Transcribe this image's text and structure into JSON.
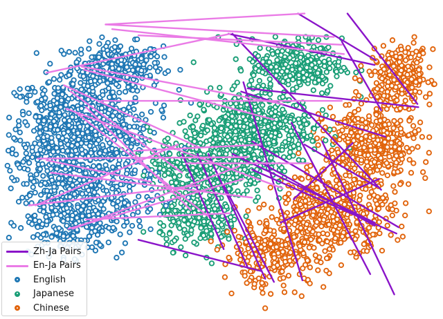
{
  "chart_data": {
    "type": "scatter",
    "title": "",
    "xlabel": "",
    "ylabel": "",
    "axes_visible": false,
    "grid": false,
    "legend_position": "bottom-left",
    "point_style": "ring with white center",
    "series": [
      {
        "name": "English",
        "kind": "points",
        "color": "#1f77b4",
        "count_approx": 1500,
        "clusters": [
          {
            "cx": 0.26,
            "cy": 0.8,
            "sx": 0.07,
            "sy": 0.05,
            "weight": 0.18
          },
          {
            "cx": 0.17,
            "cy": 0.63,
            "sx": 0.11,
            "sy": 0.09,
            "weight": 0.34
          },
          {
            "cx": 0.18,
            "cy": 0.44,
            "sx": 0.12,
            "sy": 0.11,
            "weight": 0.34
          },
          {
            "cx": 0.16,
            "cy": 0.3,
            "sx": 0.08,
            "sy": 0.07,
            "weight": 0.14
          }
        ]
      },
      {
        "name": "Japanese",
        "kind": "points",
        "color": "#1a9e77",
        "count_approx": 1400,
        "clusters": [
          {
            "cx": 0.67,
            "cy": 0.8,
            "sx": 0.07,
            "sy": 0.06,
            "weight": 0.22
          },
          {
            "cx": 0.57,
            "cy": 0.6,
            "sx": 0.09,
            "sy": 0.08,
            "weight": 0.36
          },
          {
            "cx": 0.47,
            "cy": 0.48,
            "sx": 0.09,
            "sy": 0.08,
            "weight": 0.26
          },
          {
            "cx": 0.45,
            "cy": 0.31,
            "sx": 0.06,
            "sy": 0.06,
            "weight": 0.16
          }
        ]
      },
      {
        "name": "Chinese",
        "kind": "points",
        "color": "#e1640c",
        "count_approx": 1400,
        "clusters": [
          {
            "cx": 0.91,
            "cy": 0.77,
            "sx": 0.05,
            "sy": 0.06,
            "weight": 0.2
          },
          {
            "cx": 0.84,
            "cy": 0.54,
            "sx": 0.07,
            "sy": 0.09,
            "weight": 0.3
          },
          {
            "cx": 0.76,
            "cy": 0.34,
            "sx": 0.09,
            "sy": 0.08,
            "weight": 0.3
          },
          {
            "cx": 0.62,
            "cy": 0.2,
            "sx": 0.08,
            "sy": 0.07,
            "weight": 0.2
          }
        ]
      },
      {
        "name": "Zh-Ja Pairs",
        "kind": "segments",
        "color": "#8a14c9",
        "segments": [
          [
            [
              0.675,
              0.97
            ],
            [
              0.853,
              0.82
            ]
          ],
          [
            [
              0.516,
              0.905
            ],
            [
              0.85,
              0.805
            ]
          ],
          [
            [
              0.788,
              0.97
            ],
            [
              0.948,
              0.68
            ]
          ],
          [
            [
              0.775,
              0.88
            ],
            [
              0.865,
              0.66
            ]
          ],
          [
            [
              0.525,
              0.905
            ],
            [
              0.865,
              0.405
            ]
          ],
          [
            [
              0.545,
              0.72
            ],
            [
              0.875,
              0.575
            ]
          ],
          [
            [
              0.56,
              0.73
            ],
            [
              0.95,
              0.67
            ]
          ],
          [
            [
              0.55,
              0.75
            ],
            [
              0.685,
              0.115
            ]
          ],
          [
            [
              0.73,
              0.56
            ],
            [
              0.895,
              0.07
            ]
          ],
          [
            [
              0.66,
              0.62
            ],
            [
              0.84,
              0.135
            ]
          ],
          [
            [
              0.41,
              0.52
            ],
            [
              0.505,
              0.215
            ]
          ],
          [
            [
              0.445,
              0.52
            ],
            [
              0.56,
              0.155
            ]
          ],
          [
            [
              0.47,
              0.52
            ],
            [
              0.6,
              0.12
            ]
          ],
          [
            [
              0.505,
              0.42
            ],
            [
              0.62,
              0.11
            ]
          ],
          [
            [
              0.57,
              0.56
            ],
            [
              0.905,
              0.285
            ]
          ],
          [
            [
              0.525,
              0.52
            ],
            [
              0.85,
              0.3
            ]
          ],
          [
            [
              0.57,
              0.47
            ],
            [
              0.9,
              0.265
            ]
          ],
          [
            [
              0.31,
              0.245
            ],
            [
              0.59,
              0.145
            ]
          ],
          [
            [
              0.58,
              0.5
            ],
            [
              0.85,
              0.29
            ]
          ],
          [
            [
              0.635,
              0.3
            ],
            [
              0.86,
              0.44
            ]
          ],
          [
            [
              0.8,
              0.555
            ],
            [
              0.665,
              0.375
            ]
          ],
          [
            [
              0.69,
              0.55
            ],
            [
              0.855,
              0.415
            ]
          ]
        ]
      },
      {
        "name": "En-Ja Pairs",
        "kind": "segments",
        "color": "#ea7be6",
        "segments": [
          [
            [
              0.235,
              0.935
            ],
            [
              0.757,
              0.895
            ]
          ],
          [
            [
              0.235,
              0.935
            ],
            [
              0.69,
              0.97
            ]
          ],
          [
            [
              0.25,
              0.92
            ],
            [
              0.78,
              0.84
            ]
          ],
          [
            [
              0.31,
              0.9
            ],
            [
              0.775,
              0.87
            ]
          ],
          [
            [
              0.1,
              0.78
            ],
            [
              0.52,
              0.905
            ]
          ],
          [
            [
              0.18,
              0.8
            ],
            [
              0.64,
              0.68
            ]
          ],
          [
            [
              0.185,
              0.79
            ],
            [
              0.62,
              0.63
            ]
          ],
          [
            [
              0.225,
              0.69
            ],
            [
              0.775,
              0.69
            ]
          ],
          [
            [
              0.14,
              0.74
            ],
            [
              0.45,
              0.54
            ]
          ],
          [
            [
              0.155,
              0.72
            ],
            [
              0.41,
              0.46
            ]
          ],
          [
            [
              0.145,
              0.665
            ],
            [
              0.64,
              0.41
            ]
          ],
          [
            [
              0.17,
              0.65
            ],
            [
              0.47,
              0.32
            ]
          ],
          [
            [
              0.19,
              0.67
            ],
            [
              0.43,
              0.34
            ]
          ],
          [
            [
              0.3,
              0.53
            ],
            [
              0.59,
              0.55
            ]
          ],
          [
            [
              0.08,
              0.505
            ],
            [
              0.56,
              0.51
            ]
          ],
          [
            [
              0.1,
              0.5
            ],
            [
              0.34,
              0.43
            ]
          ],
          [
            [
              0.11,
              0.46
            ],
            [
              0.57,
              0.38
            ]
          ],
          [
            [
              0.06,
              0.355
            ],
            [
              0.45,
              0.42
            ]
          ],
          [
            [
              0.16,
              0.28
            ],
            [
              0.54,
              0.48
            ]
          ],
          [
            [
              0.19,
              0.31
            ],
            [
              0.52,
              0.33
            ]
          ],
          [
            [
              0.075,
              0.355
            ],
            [
              0.4,
              0.55
            ]
          ],
          [
            [
              0.42,
              0.49
            ],
            [
              0.7,
              0.49
            ]
          ],
          [
            [
              0.15,
              0.28
            ],
            [
              0.55,
              0.44
            ]
          ]
        ]
      }
    ]
  },
  "legend": {
    "entries": [
      {
        "label": "Zh-Ja Pairs",
        "type": "line",
        "color": "#8a14c9"
      },
      {
        "label": "En-Ja Pairs",
        "type": "line",
        "color": "#ea7be6"
      },
      {
        "label": "English",
        "type": "marker",
        "color": "#1f77b4"
      },
      {
        "label": "Japanese",
        "type": "marker",
        "color": "#1a9e77"
      },
      {
        "label": "Chinese",
        "type": "marker",
        "color": "#e1640c"
      }
    ]
  }
}
